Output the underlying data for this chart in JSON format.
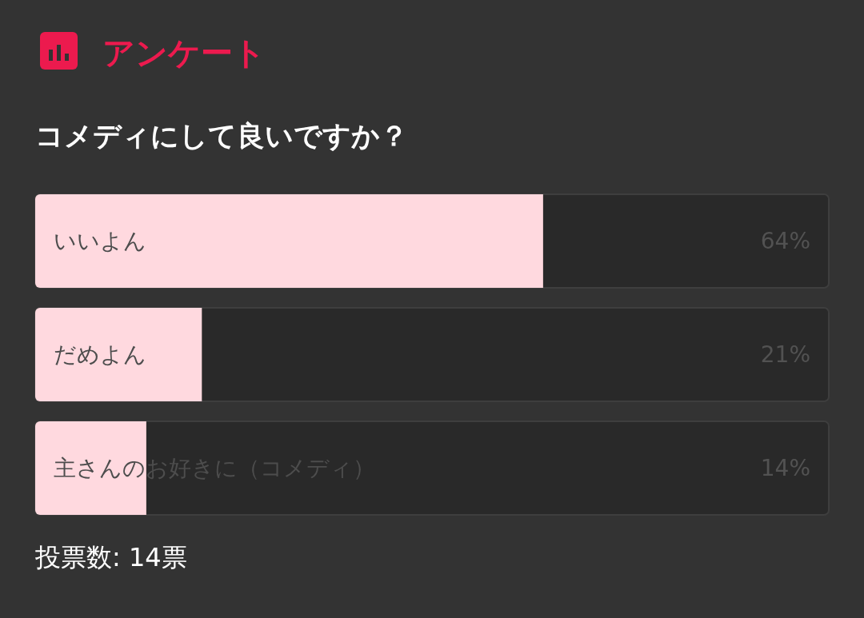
{
  "chart_data": {
    "type": "bar",
    "orientation": "horizontal",
    "title": "アンケート",
    "subtitle": "コメディにして良いですか？",
    "categories": [
      "いいよん",
      "だめよん",
      "主さんのお好きに（コメディ）"
    ],
    "values": [
      64,
      21,
      14
    ],
    "value_labels": [
      "64%",
      "21%",
      "14%"
    ],
    "color": "#ffd9df",
    "xlim": [
      0,
      100
    ],
    "annotations": [
      "投票数: 14票"
    ]
  }
}
